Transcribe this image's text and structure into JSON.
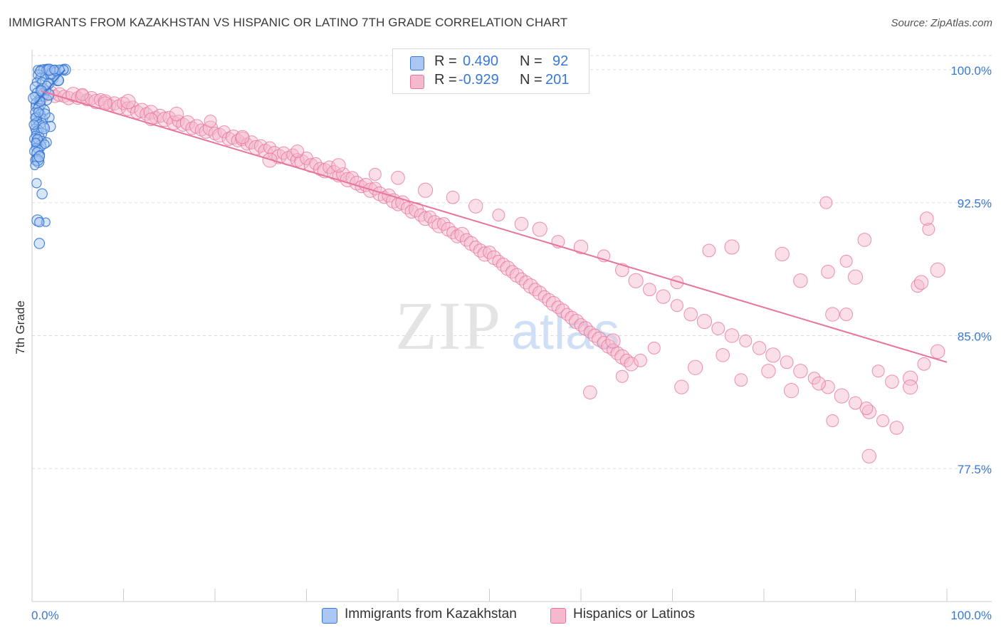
{
  "title": "IMMIGRANTS FROM KAZAKHSTAN VS HISPANIC OR LATINO 7TH GRADE CORRELATION CHART",
  "source": "Source: ZipAtlas.com",
  "watermark": {
    "zip": "ZIP",
    "atlas": "atlas"
  },
  "legend": {
    "r_label": "R =",
    "n_label": "N =",
    "series1": {
      "r": "0.490",
      "n": "92"
    },
    "series2": {
      "r": "-0.929",
      "n": "201"
    }
  },
  "colors": {
    "blue": "#3a78d4",
    "blue_fill": "#a9c7f2",
    "pink": "#e8749e",
    "pink_fill": "#f5b8cd",
    "grid": "#dddddd",
    "tick_label": "#3a78d4"
  },
  "chart_data": {
    "type": "scatter",
    "xlabel": "",
    "ylabel": "7th Grade",
    "xlim": [
      0,
      100
    ],
    "ylim": [
      70.0,
      100.8
    ],
    "x_tick_labels": [
      "0.0%",
      "100.0%"
    ],
    "y_ticks": [
      100.0,
      92.5,
      85.0,
      77.5
    ],
    "y_tick_labels": [
      "100.0%",
      "92.5%",
      "85.0%",
      "77.5%"
    ],
    "grid": true,
    "legend_position": "top-center",
    "series": [
      {
        "name": "Immigrants from Kazakhstan",
        "color": "#3a78d4",
        "points": [
          [
            0.6,
            100.0
          ],
          [
            1.0,
            100.0
          ],
          [
            1.3,
            100.0
          ],
          [
            1.7,
            100.0
          ],
          [
            2.1,
            100.0
          ],
          [
            2.5,
            100.0
          ],
          [
            3.4,
            100.0
          ],
          [
            3.6,
            100.0
          ],
          [
            3.5,
            100.0
          ],
          [
            1.6,
            100.0
          ],
          [
            0.7,
            99.7
          ],
          [
            1.0,
            99.5
          ],
          [
            1.4,
            99.6
          ],
          [
            2.0,
            99.7
          ],
          [
            2.3,
            99.5
          ],
          [
            2.8,
            99.4
          ],
          [
            0.5,
            99.3
          ],
          [
            1.1,
            99.3
          ],
          [
            1.8,
            99.2
          ],
          [
            0.4,
            99.0
          ],
          [
            0.9,
            98.9
          ],
          [
            1.5,
            98.8
          ],
          [
            0.6,
            98.7
          ],
          [
            1.2,
            98.6
          ],
          [
            0.3,
            98.5
          ],
          [
            0.8,
            98.3
          ],
          [
            1.6,
            98.3
          ],
          [
            0.5,
            98.1
          ],
          [
            1.0,
            98.0
          ],
          [
            0.4,
            97.9
          ],
          [
            0.7,
            97.8
          ],
          [
            1.3,
            97.7
          ],
          [
            0.3,
            97.6
          ],
          [
            0.9,
            97.5
          ],
          [
            0.5,
            97.3
          ],
          [
            1.1,
            97.2
          ],
          [
            0.6,
            97.1
          ],
          [
            0.4,
            97.0
          ],
          [
            0.8,
            96.9
          ],
          [
            1.2,
            96.8
          ],
          [
            0.3,
            96.7
          ],
          [
            0.7,
            96.6
          ],
          [
            0.5,
            96.5
          ],
          [
            1.0,
            96.4
          ],
          [
            0.4,
            96.3
          ],
          [
            0.8,
            96.2
          ],
          [
            0.3,
            96.1
          ],
          [
            0.6,
            96.0
          ],
          [
            1.1,
            96.0
          ],
          [
            1.6,
            95.9
          ],
          [
            0.5,
            95.8
          ],
          [
            0.9,
            95.7
          ],
          [
            0.4,
            95.6
          ],
          [
            0.7,
            95.5
          ],
          [
            0.3,
            95.4
          ],
          [
            0.6,
            95.3
          ],
          [
            0.9,
            95.2
          ],
          [
            0.5,
            95.0
          ],
          [
            0.4,
            94.9
          ],
          [
            0.7,
            94.8
          ],
          [
            1.4,
            95.8
          ],
          [
            1.9,
            97.3
          ],
          [
            2.0,
            96.8
          ],
          [
            0.6,
            94.9
          ],
          [
            0.3,
            94.6
          ],
          [
            0.5,
            93.6
          ],
          [
            1.1,
            93.0
          ],
          [
            0.6,
            91.5
          ],
          [
            1.5,
            91.4
          ],
          [
            0.8,
            91.4
          ],
          [
            0.8,
            90.2
          ],
          [
            1.2,
            98.9
          ],
          [
            1.6,
            99.1
          ],
          [
            0.9,
            98.2
          ],
          [
            1.4,
            97.5
          ],
          [
            2.2,
            99.8
          ],
          [
            2.6,
            99.9
          ],
          [
            3.0,
            100.0
          ],
          [
            2.9,
            99.4
          ],
          [
            0.2,
            98.4
          ],
          [
            0.3,
            97.3
          ],
          [
            0.6,
            96.1
          ],
          [
            0.8,
            95.1
          ],
          [
            1.3,
            96.7
          ],
          [
            0.4,
            95.9
          ],
          [
            0.2,
            96.9
          ],
          [
            0.9,
            99.9
          ],
          [
            1.9,
            100.0
          ],
          [
            2.4,
            100.0
          ],
          [
            0.7,
            97.6
          ],
          [
            1.0,
            98.8
          ],
          [
            1.8,
            98.6
          ]
        ]
      },
      {
        "name": "Hispanics or Latinos",
        "color": "#e8749e",
        "points": [
          [
            1.0,
            98.4
          ],
          [
            1.5,
            98.6
          ],
          [
            2.0,
            98.7
          ],
          [
            2.5,
            98.5
          ],
          [
            3.0,
            98.6
          ],
          [
            3.5,
            98.5
          ],
          [
            4.0,
            98.4
          ],
          [
            4.5,
            98.6
          ],
          [
            5.0,
            98.4
          ],
          [
            5.5,
            98.5
          ],
          [
            6.0,
            98.3
          ],
          [
            6.5,
            98.4
          ],
          [
            7.0,
            98.2
          ],
          [
            7.5,
            98.3
          ],
          [
            8.0,
            98.2
          ],
          [
            8.5,
            98.0
          ],
          [
            9.0,
            98.1
          ],
          [
            9.5,
            97.9
          ],
          [
            10.0,
            98.1
          ],
          [
            10.5,
            97.8
          ],
          [
            11.0,
            97.9
          ],
          [
            11.5,
            97.6
          ],
          [
            12.0,
            97.7
          ],
          [
            12.5,
            97.5
          ],
          [
            13.0,
            97.6
          ],
          [
            13.5,
            97.3
          ],
          [
            14.0,
            97.4
          ],
          [
            14.5,
            97.2
          ],
          [
            15.0,
            97.3
          ],
          [
            15.5,
            97.0
          ],
          [
            16.0,
            97.1
          ],
          [
            16.5,
            96.9
          ],
          [
            17.0,
            97.0
          ],
          [
            17.5,
            96.7
          ],
          [
            18.0,
            96.8
          ],
          [
            18.5,
            96.6
          ],
          [
            19.0,
            96.5
          ],
          [
            19.5,
            96.7
          ],
          [
            20.0,
            96.4
          ],
          [
            20.5,
            96.3
          ],
          [
            21.0,
            96.5
          ],
          [
            21.5,
            96.1
          ],
          [
            22.0,
            96.2
          ],
          [
            22.5,
            96.0
          ],
          [
            23.0,
            96.1
          ],
          [
            23.5,
            95.8
          ],
          [
            24.0,
            95.9
          ],
          [
            24.5,
            95.6
          ],
          [
            25.0,
            95.7
          ],
          [
            25.5,
            95.4
          ],
          [
            26.0,
            95.6
          ],
          [
            26.5,
            95.3
          ],
          [
            27.0,
            95.1
          ],
          [
            27.5,
            95.3
          ],
          [
            28.0,
            95.0
          ],
          [
            28.5,
            95.2
          ],
          [
            29.0,
            94.9
          ],
          [
            29.5,
            94.8
          ],
          [
            30.0,
            95.0
          ],
          [
            30.5,
            94.6
          ],
          [
            31.0,
            94.7
          ],
          [
            31.5,
            94.4
          ],
          [
            32.0,
            94.3
          ],
          [
            32.5,
            94.5
          ],
          [
            33.0,
            94.2
          ],
          [
            33.5,
            94.0
          ],
          [
            34.0,
            94.1
          ],
          [
            34.5,
            93.8
          ],
          [
            35.0,
            93.9
          ],
          [
            35.5,
            93.6
          ],
          [
            36.0,
            93.4
          ],
          [
            36.5,
            93.5
          ],
          [
            37.0,
            93.2
          ],
          [
            37.5,
            93.3
          ],
          [
            38.0,
            93.0
          ],
          [
            38.5,
            92.8
          ],
          [
            39.0,
            92.9
          ],
          [
            39.5,
            92.6
          ],
          [
            40.0,
            92.4
          ],
          [
            40.5,
            92.5
          ],
          [
            41.0,
            92.2
          ],
          [
            41.5,
            92.0
          ],
          [
            42.0,
            92.1
          ],
          [
            42.5,
            91.8
          ],
          [
            43.0,
            91.6
          ],
          [
            43.5,
            91.7
          ],
          [
            44.0,
            91.4
          ],
          [
            44.5,
            91.2
          ],
          [
            45.0,
            91.3
          ],
          [
            45.5,
            91.0
          ],
          [
            46.0,
            90.8
          ],
          [
            46.5,
            90.6
          ],
          [
            47.0,
            90.7
          ],
          [
            47.5,
            90.4
          ],
          [
            48.0,
            90.2
          ],
          [
            48.5,
            90.0
          ],
          [
            49.0,
            89.8
          ],
          [
            49.5,
            89.6
          ],
          [
            50.0,
            89.7
          ],
          [
            50.5,
            89.4
          ],
          [
            51.0,
            89.2
          ],
          [
            51.5,
            89.0
          ],
          [
            52.0,
            88.8
          ],
          [
            52.5,
            88.6
          ],
          [
            53.0,
            88.4
          ],
          [
            53.5,
            88.2
          ],
          [
            54.0,
            88.0
          ],
          [
            54.5,
            87.8
          ],
          [
            55.0,
            87.6
          ],
          [
            55.5,
            87.4
          ],
          [
            56.0,
            87.2
          ],
          [
            56.5,
            87.0
          ],
          [
            57.0,
            86.8
          ],
          [
            57.5,
            86.6
          ],
          [
            58.0,
            86.4
          ],
          [
            58.5,
            86.2
          ],
          [
            59.0,
            86.0
          ],
          [
            59.5,
            85.8
          ],
          [
            60.0,
            85.6
          ],
          [
            60.5,
            85.4
          ],
          [
            61.0,
            85.2
          ],
          [
            61.5,
            85.0
          ],
          [
            62.0,
            84.8
          ],
          [
            62.5,
            84.6
          ],
          [
            63.0,
            84.4
          ],
          [
            63.5,
            84.2
          ],
          [
            64.0,
            84.0
          ],
          [
            64.5,
            83.8
          ],
          [
            65.0,
            83.6
          ],
          [
            65.5,
            83.4
          ],
          [
            5.5,
            98.6
          ],
          [
            8.0,
            98.1
          ],
          [
            10.5,
            98.2
          ],
          [
            13.0,
            97.2
          ],
          [
            15.8,
            97.5
          ],
          [
            19.5,
            97.1
          ],
          [
            23.0,
            96.2
          ],
          [
            26.0,
            94.9
          ],
          [
            29.0,
            95.4
          ],
          [
            33.5,
            94.6
          ],
          [
            37.5,
            94.1
          ],
          [
            40.0,
            93.9
          ],
          [
            43.0,
            93.2
          ],
          [
            46.0,
            92.8
          ],
          [
            48.5,
            92.3
          ],
          [
            51.0,
            91.8
          ],
          [
            53.5,
            91.3
          ],
          [
            55.5,
            91.0
          ],
          [
            57.5,
            90.3
          ],
          [
            60.0,
            90.0
          ],
          [
            62.5,
            89.5
          ],
          [
            64.5,
            88.7
          ],
          [
            66.0,
            88.1
          ],
          [
            67.5,
            87.6
          ],
          [
            69.0,
            87.2
          ],
          [
            70.5,
            86.7
          ],
          [
            72.0,
            86.2
          ],
          [
            73.5,
            85.8
          ],
          [
            75.0,
            85.4
          ],
          [
            76.5,
            85.0
          ],
          [
            78.0,
            84.7
          ],
          [
            79.5,
            84.3
          ],
          [
            81.0,
            83.9
          ],
          [
            82.5,
            83.5
          ],
          [
            84.0,
            83.0
          ],
          [
            85.5,
            82.6
          ],
          [
            87.0,
            82.1
          ],
          [
            88.5,
            81.6
          ],
          [
            90.0,
            81.2
          ],
          [
            91.5,
            80.7
          ],
          [
            93.0,
            80.2
          ],
          [
            94.5,
            79.8
          ],
          [
            96.0,
            82.6
          ],
          [
            97.5,
            83.4
          ],
          [
            99.0,
            84.1
          ],
          [
            98.0,
            91.0
          ],
          [
            97.8,
            91.6
          ],
          [
            99.0,
            88.7
          ],
          [
            96.8,
            87.8
          ],
          [
            97.2,
            88.0
          ],
          [
            86.8,
            92.5
          ],
          [
            91.0,
            90.4
          ],
          [
            76.5,
            90.0
          ],
          [
            74.0,
            89.8
          ],
          [
            82.0,
            89.6
          ],
          [
            89.0,
            89.2
          ],
          [
            87.0,
            88.6
          ],
          [
            90.0,
            88.3
          ],
          [
            70.5,
            88.0
          ],
          [
            84.0,
            88.1
          ],
          [
            68.0,
            84.3
          ],
          [
            75.5,
            83.9
          ],
          [
            63.5,
            84.7
          ],
          [
            66.5,
            83.6
          ],
          [
            80.5,
            83.0
          ],
          [
            92.5,
            83.0
          ],
          [
            94.0,
            82.4
          ],
          [
            96.0,
            82.1
          ],
          [
            91.2,
            80.9
          ],
          [
            91.5,
            78.2
          ],
          [
            87.5,
            80.2
          ],
          [
            86.0,
            82.3
          ],
          [
            83.0,
            81.9
          ],
          [
            77.5,
            82.5
          ],
          [
            71.0,
            82.1
          ],
          [
            64.5,
            82.7
          ],
          [
            61.0,
            81.8
          ],
          [
            72.5,
            83.2
          ],
          [
            89.0,
            86.2
          ],
          [
            87.5,
            86.2
          ]
        ]
      }
    ],
    "trendlines": [
      {
        "series": "Immigrants from Kazakhstan",
        "x": [
          0.2,
          3.6
        ],
        "y": [
          98.0,
          100.0
        ]
      },
      {
        "series": "Hispanics or Latinos",
        "x": [
          1.0,
          100.0
        ],
        "y": [
          98.8,
          83.5
        ]
      }
    ]
  },
  "bottom_legend": {
    "series1": "Immigrants from Kazakhstan",
    "series2": "Hispanics or Latinos"
  }
}
